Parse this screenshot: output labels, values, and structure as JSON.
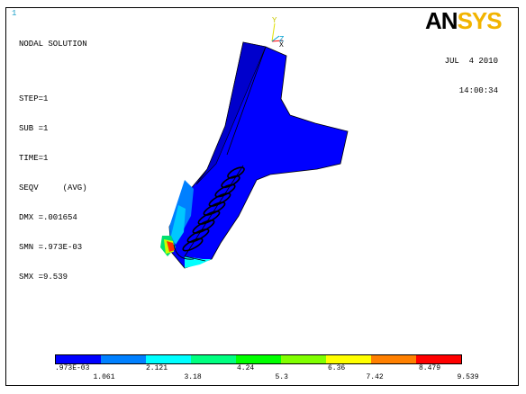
{
  "window_number": "1",
  "logo": {
    "part1": "AN",
    "part2": "SYS"
  },
  "info": {
    "line1": "NODAL SOLUTION",
    "line2": "STEP=1",
    "line3": "SUB =1",
    "line4": "TIME=1",
    "line5": "SEQV     (AVG)",
    "line6": "DMX =.001654",
    "line7": "SMN =.973E-03",
    "line8": "SMX =9.539"
  },
  "datetime": {
    "date": "JUL  4 2010",
    "time": "14:00:34"
  },
  "axes": {
    "y": "Y",
    "z": "Z",
    "x": "X"
  },
  "legend": {
    "colors": [
      "#0000ff",
      "#0080ff",
      "#00ffff",
      "#00ff80",
      "#00ff00",
      "#80ff00",
      "#ffff00",
      "#ff8000",
      "#ff0000"
    ],
    "labels_top": [
      ".973E-03",
      "2.121",
      "4.24",
      "6.36",
      "8.479"
    ],
    "labels_bottom": [
      "1.061",
      "3.18",
      "5.3",
      "7.42",
      "9.539"
    ]
  }
}
